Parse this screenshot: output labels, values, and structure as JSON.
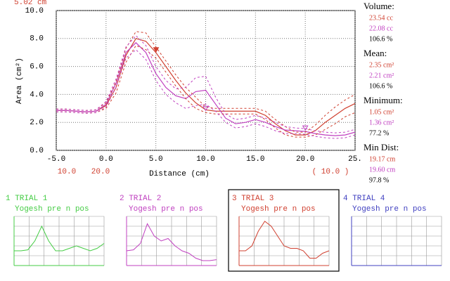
{
  "chart_data": {
    "type": "line",
    "top_label": "5.02 cm",
    "y_label": "Area (cm²)",
    "x_label": "Distance (cm)",
    "x_extra_labels": [
      {
        "text": "10.0",
        "color": "#d04030"
      },
      {
        "text": "20.0",
        "color": "#d04030"
      },
      {
        "text": "( 10.0 )",
        "color": "#d04030"
      }
    ],
    "xlim": [
      -5,
      25
    ],
    "ylim": [
      0,
      10
    ],
    "grid": true,
    "xticks": [
      {
        "value": -5,
        "label": "-5.0"
      },
      {
        "value": 0,
        "label": "0.0"
      },
      {
        "value": 5,
        "label": "5.0"
      },
      {
        "value": 10,
        "label": "10.0"
      },
      {
        "value": 15,
        "label": "15.0"
      },
      {
        "value": 20,
        "label": "20.0"
      },
      {
        "value": 25,
        "label": "25."
      }
    ],
    "yticks": [
      {
        "value": 0,
        "label": "0.0"
      },
      {
        "value": 2,
        "label": "2.0"
      },
      {
        "value": 4,
        "label": "4.0"
      },
      {
        "value": 6,
        "label": "6.0"
      },
      {
        "value": 8,
        "label": "8.0"
      },
      {
        "value": 10,
        "label": "10.0"
      }
    ],
    "x": [
      -5,
      -4,
      -3,
      -2,
      -1,
      0,
      1,
      2,
      3,
      4,
      5,
      6,
      7,
      8,
      9,
      10,
      11,
      12,
      13,
      14,
      15,
      16,
      17,
      18,
      19,
      20,
      21,
      22,
      23,
      24,
      25
    ],
    "series": [
      {
        "color": "#d04030",
        "values": [
          2.85,
          2.85,
          2.8,
          2.75,
          2.8,
          3.2,
          4.5,
          6.8,
          8.0,
          7.8,
          7.0,
          6.0,
          5.0,
          4.1,
          3.4,
          2.9,
          2.8,
          2.8,
          2.8,
          2.8,
          2.8,
          2.5,
          1.9,
          1.4,
          1.1,
          1.1,
          1.4,
          2.0,
          2.5,
          3.0,
          3.35
        ]
      },
      {
        "color": "#c040c0",
        "values": [
          2.85,
          2.85,
          2.8,
          2.75,
          2.8,
          3.3,
          4.8,
          7.0,
          7.7,
          7.0,
          5.5,
          4.5,
          3.9,
          3.7,
          4.2,
          4.3,
          3.3,
          2.3,
          1.9,
          2.0,
          2.2,
          2.0,
          1.7,
          1.45,
          1.4,
          1.35,
          1.2,
          1.1,
          1.05,
          1.1,
          1.3
        ]
      },
      {
        "color": "#d04030",
        "dashed": true,
        "values": [
          2.95,
          2.95,
          2.9,
          2.85,
          2.9,
          3.4,
          4.9,
          7.3,
          8.5,
          8.4,
          7.4,
          6.4,
          5.4,
          4.5,
          3.8,
          3.1,
          3.0,
          3.0,
          3.0,
          3.0,
          3.0,
          2.8,
          2.2,
          1.7,
          1.3,
          1.3,
          1.8,
          2.5,
          3.1,
          3.6,
          4.0
        ]
      },
      {
        "color": "#d04030",
        "dashed": true,
        "values": [
          2.75,
          2.75,
          2.7,
          2.65,
          2.7,
          3.0,
          4.1,
          6.3,
          7.5,
          7.2,
          6.6,
          5.6,
          4.6,
          3.7,
          3.0,
          2.7,
          2.6,
          2.6,
          2.6,
          2.6,
          2.6,
          2.2,
          1.6,
          1.1,
          0.95,
          0.95,
          1.1,
          1.5,
          1.9,
          2.4,
          2.7
        ]
      },
      {
        "color": "#c040c0",
        "dashed": true,
        "values": [
          2.95,
          2.95,
          2.9,
          2.85,
          2.9,
          3.5,
          5.1,
          7.4,
          8.2,
          7.5,
          6.0,
          5.0,
          4.4,
          4.5,
          5.2,
          5.3,
          3.8,
          2.6,
          2.2,
          2.3,
          2.5,
          2.3,
          2.0,
          1.7,
          1.6,
          1.55,
          1.4,
          1.3,
          1.25,
          1.3,
          1.5
        ]
      },
      {
        "color": "#c040c0",
        "dashed": true,
        "values": [
          2.75,
          2.75,
          2.7,
          2.65,
          2.7,
          3.1,
          4.5,
          6.6,
          7.2,
          6.5,
          5.0,
          4.0,
          3.4,
          3.0,
          3.2,
          3.3,
          2.8,
          2.0,
          1.6,
          1.7,
          1.9,
          1.7,
          1.4,
          1.2,
          1.2,
          1.15,
          1.0,
          0.9,
          0.85,
          0.9,
          1.1
        ]
      }
    ],
    "markers": [
      {
        "x": 5.02,
        "y": 7.2,
        "color": "#d04030"
      },
      {
        "x": 10,
        "y": 3.0,
        "color": "#c040c0"
      },
      {
        "x": 20,
        "y": 1.6,
        "color": "#c040c0"
      }
    ]
  },
  "stats": [
    {
      "label": "Volume:",
      "values": [
        {
          "text": "23.54 cc",
          "color": "#d04030"
        },
        {
          "text": "22.08 cc",
          "color": "#c040c0"
        },
        {
          "text": "106.6 %",
          "color": "#000000"
        }
      ]
    },
    {
      "label": "Mean:",
      "values": [
        {
          "text": "2.35 cm²",
          "color": "#d04030"
        },
        {
          "text": "2.21 cm²",
          "color": "#c040c0"
        },
        {
          "text": "106.6 %",
          "color": "#000000"
        }
      ]
    },
    {
      "label": "Minimum:",
      "values": [
        {
          "text": "1.05 cm²",
          "color": "#d04030"
        },
        {
          "text": "1.36 cm²",
          "color": "#c040c0"
        },
        {
          "text": "77.2 %",
          "color": "#000000"
        }
      ]
    },
    {
      "label": "Min Dist:",
      "values": [
        {
          "text": "19.17 cm",
          "color": "#d04030"
        },
        {
          "text": "19.60 cm",
          "color": "#c040c0"
        },
        {
          "text": "97.8 %",
          "color": "#000000"
        }
      ]
    }
  ],
  "trials": [
    {
      "title": "1 TRIAL 1",
      "subtitle": "Yogesh pre n pos",
      "color": "#44cc44",
      "values": [
        3,
        3,
        3.2,
        5,
        8,
        5,
        3,
        3,
        3.5,
        4,
        3.5,
        3,
        3.5,
        4.5
      ]
    },
    {
      "title": "2 TRIAL 2",
      "subtitle": "Yogesh pre n pos",
      "color": "#c040c0",
      "values": [
        3,
        3.2,
        4.5,
        8.5,
        6,
        5,
        5.5,
        4,
        3,
        2.5,
        1.5,
        1,
        1,
        1.2
      ]
    },
    {
      "title": "3 TRIAL 3",
      "subtitle": "Yogesh pre n pos",
      "color": "#d04030",
      "selected": true,
      "values": [
        3,
        3,
        4,
        7,
        9,
        8,
        6,
        4,
        3.5,
        3.5,
        3,
        1.5,
        1.5,
        2.5,
        3
      ]
    },
    {
      "title": "4 TRIAL 4",
      "subtitle": "Yogesh pre n pos",
      "color": "#4040c0",
      "values": []
    }
  ]
}
